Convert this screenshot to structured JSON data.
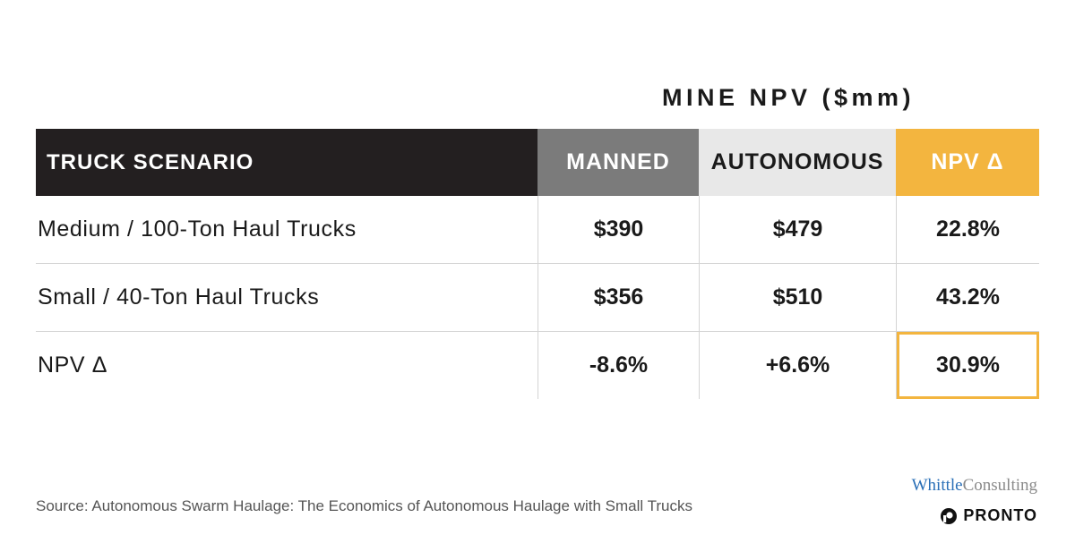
{
  "super_title": "MINE NPV ($mm)",
  "chart_data": {
    "type": "table",
    "title": "MINE NPV ($mm)",
    "columns": [
      "TRUCK SCENARIO",
      "MANNED",
      "AUTONOMOUS",
      "NPV Δ"
    ],
    "rows": [
      {
        "label": "Medium / 100-Ton Haul Trucks",
        "manned": "$390",
        "autonomous": "$479",
        "npv_delta": "22.8%"
      },
      {
        "label": "Small / 40-Ton Haul Trucks",
        "manned": "$356",
        "autonomous": "$510",
        "npv_delta": "43.2%"
      },
      {
        "label": "NPV Δ",
        "manned": "-8.6%",
        "autonomous": "+6.6%",
        "npv_delta": "30.9%"
      }
    ],
    "highlighted_cell": "30.9%"
  },
  "source": "Source: Autonomous Swarm Haulage: The Economics of Autonomous Haulage with Small Trucks",
  "logos": {
    "whittle_part1": "Whittle",
    "whittle_part2": "Consulting",
    "pronto": "PRONTO"
  },
  "colors": {
    "header_dark": "#231f20",
    "header_grey": "#7b7b7b",
    "header_light": "#e8e8e8",
    "accent_gold": "#f3b53f"
  }
}
